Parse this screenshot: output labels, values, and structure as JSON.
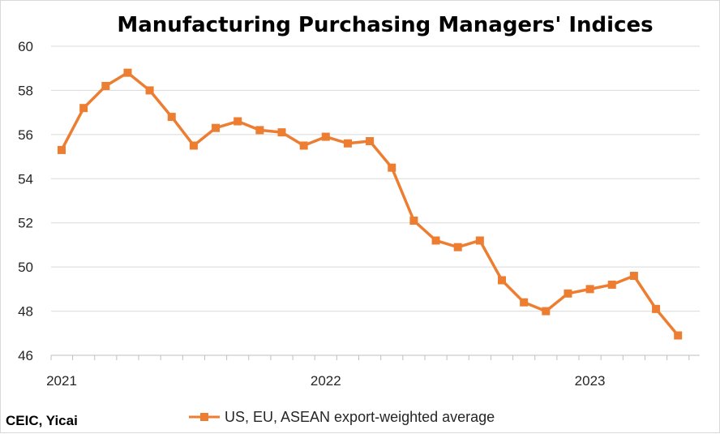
{
  "chart_data": {
    "type": "line",
    "title": "Manufacturing Purchasing Managers' Indices",
    "xlabel": "",
    "ylabel": "",
    "ylim": [
      46,
      60
    ],
    "yticks": [
      "60",
      "58",
      "56",
      "54",
      "52",
      "50",
      "48",
      "46"
    ],
    "x_tick_labels": [
      {
        "label": "2021",
        "index": 0
      },
      {
        "label": "2022",
        "index": 12
      },
      {
        "label": "2023",
        "index": 24
      }
    ],
    "grid": true,
    "legend_position": "bottom",
    "series": [
      {
        "name": "US, EU, ASEAN export-weighted average",
        "color": "#ED7D31",
        "marker": "square",
        "values": [
          55.3,
          57.2,
          58.2,
          58.8,
          58.0,
          56.8,
          55.5,
          56.3,
          56.6,
          56.2,
          56.1,
          55.5,
          55.9,
          55.6,
          55.7,
          54.5,
          52.1,
          51.2,
          50.9,
          51.2,
          49.4,
          48.4,
          48.0,
          48.8,
          49.0,
          49.2,
          49.6,
          48.1,
          46.9
        ]
      }
    ]
  },
  "source_note": "CEIC, Yicai"
}
